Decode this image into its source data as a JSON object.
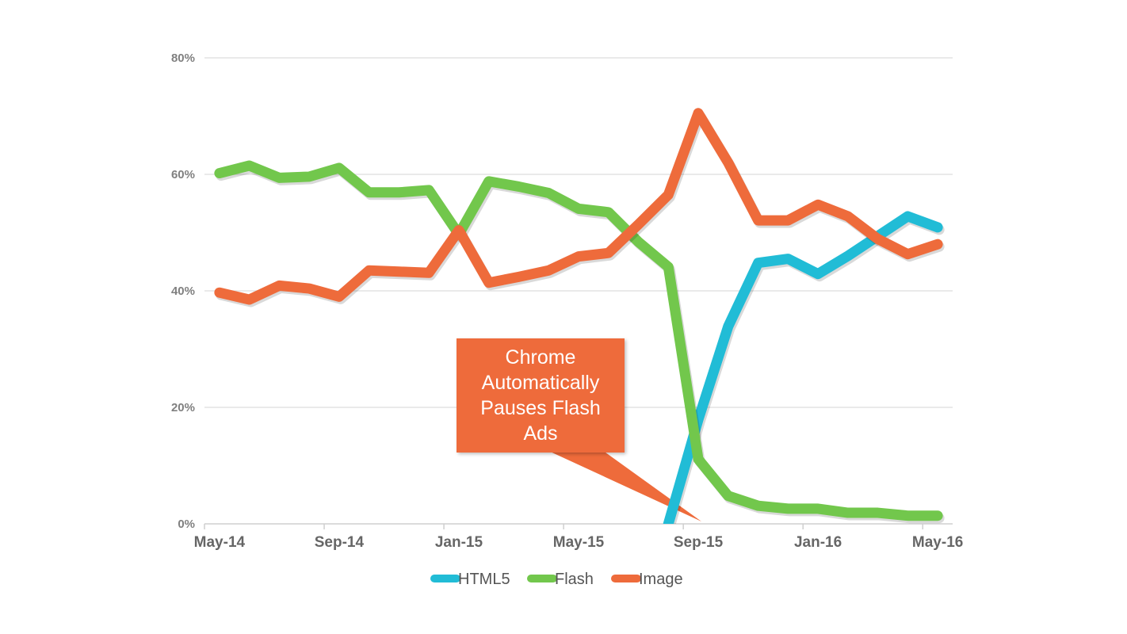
{
  "chart_data": {
    "type": "line",
    "title": "",
    "xlabel": "",
    "ylabel": "",
    "categories": [
      "May-14",
      "Jun-14",
      "Jul-14",
      "Aug-14",
      "Sep-14",
      "Oct-14",
      "Nov-14",
      "Dec-14",
      "Jan-15",
      "Feb-15",
      "Mar-15",
      "Apr-15",
      "May-15",
      "Jun-15",
      "Jul-15",
      "Aug-15",
      "Sep-15",
      "Oct-15",
      "Nov-15",
      "Dec-15",
      "Jan-16",
      "Feb-16",
      "Mar-16",
      "Apr-16",
      "May-16"
    ],
    "x_tick_labels": [
      "May-14",
      "Sep-14",
      "Jan-15",
      "May-15",
      "Sep-15",
      "Jan-16",
      "May-16"
    ],
    "y_tick_labels": [
      "0%",
      "20%",
      "40%",
      "60%",
      "80%"
    ],
    "ylim": [
      0,
      80
    ],
    "grid": true,
    "legend_position": "bottom",
    "series": [
      {
        "name": "HTML5",
        "color": "#21bcd6",
        "values": [
          null,
          null,
          null,
          null,
          null,
          null,
          null,
          null,
          null,
          null,
          null,
          null,
          null,
          null,
          null,
          0,
          17.9,
          33.9,
          44.8,
          45.5,
          42.9,
          46.0,
          49.4,
          52.8,
          50.9
        ]
      },
      {
        "name": "Flash",
        "color": "#72c74c",
        "values": [
          60.2,
          61.5,
          59.4,
          59.6,
          61.1,
          56.9,
          56.9,
          57.3,
          49.7,
          58.8,
          57.9,
          56.8,
          54.1,
          53.5,
          48.4,
          44.1,
          11.1,
          4.8,
          3.1,
          2.6,
          2.6,
          1.9,
          1.9,
          1.4,
          1.4
        ]
      },
      {
        "name": "Image",
        "color": "#ee6b3b",
        "values": [
          39.7,
          38.5,
          40.9,
          40.4,
          39.0,
          43.5,
          43.3,
          43.1,
          50.4,
          41.4,
          42.4,
          43.5,
          45.9,
          46.5,
          51.4,
          56.5,
          70.5,
          62.0,
          52.1,
          52.1,
          54.8,
          52.8,
          48.9,
          46.3,
          48.0
        ]
      }
    ],
    "annotations": [
      {
        "text": "Chrome Automatically Pauses Flash Ads",
        "points_to": "Sep-15",
        "color": "#ee6b3b"
      }
    ]
  }
}
